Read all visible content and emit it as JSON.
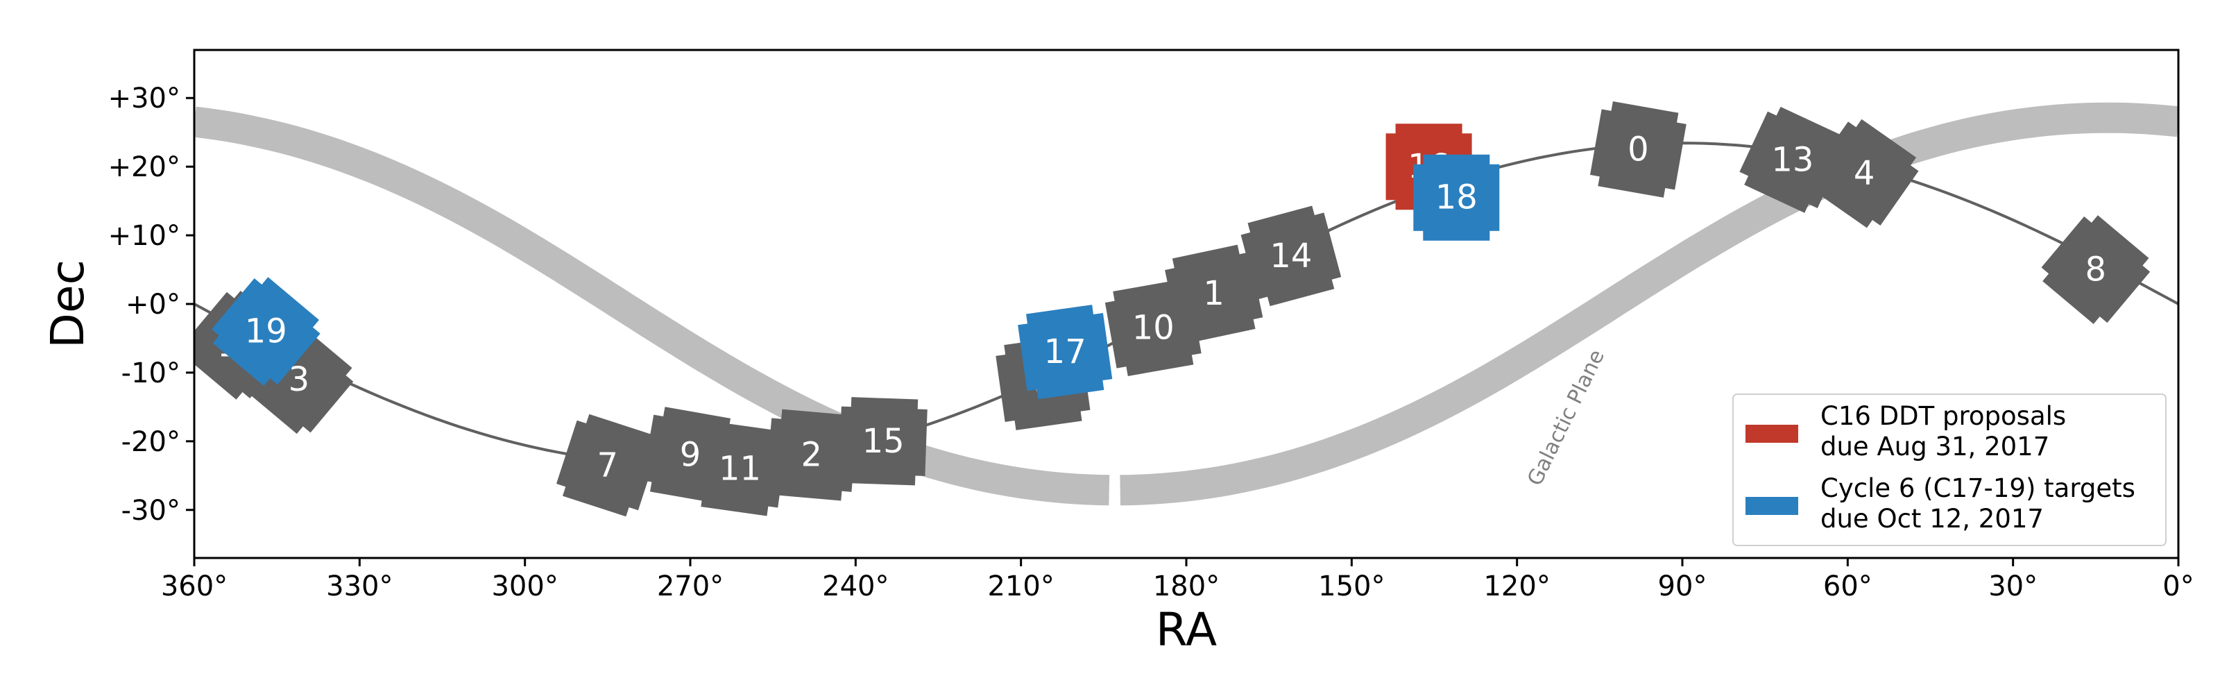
{
  "chart_data": {
    "type": "scatter",
    "title": "",
    "xlabel": "RA",
    "ylabel": "Dec",
    "xlim": [
      360,
      0
    ],
    "ylim": [
      -37,
      37
    ],
    "x_ticks": [
      {
        "value": 360,
        "label": "360°"
      },
      {
        "value": 330,
        "label": "330°"
      },
      {
        "value": 300,
        "label": "300°"
      },
      {
        "value": 270,
        "label": "270°"
      },
      {
        "value": 240,
        "label": "240°"
      },
      {
        "value": 210,
        "label": "210°"
      },
      {
        "value": 180,
        "label": "180°"
      },
      {
        "value": 150,
        "label": "150°"
      },
      {
        "value": 120,
        "label": "120°"
      },
      {
        "value": 90,
        "label": "90°"
      },
      {
        "value": 60,
        "label": "60°"
      },
      {
        "value": 30,
        "label": "30°"
      },
      {
        "value": 0,
        "label": "0°"
      }
    ],
    "y_ticks": [
      {
        "value": 30,
        "label": "+30°"
      },
      {
        "value": 20,
        "label": "+20°"
      },
      {
        "value": 10,
        "label": "+10°"
      },
      {
        "value": 0,
        "label": "+0°"
      },
      {
        "value": -10,
        "label": "-10°"
      },
      {
        "value": -20,
        "label": "-20°"
      },
      {
        "value": -30,
        "label": "-30°"
      }
    ],
    "grid": false,
    "colors": {
      "past": "#606060",
      "c16": "#c0392b",
      "cycle6": "#2a7fbf",
      "ecliptic": "#606060",
      "galactic": "#bdbdbd"
    },
    "legend": {
      "position": "lower-right",
      "entries": [
        {
          "group": "c16",
          "line1": "C16 DDT proposals",
          "line2": "due Aug 31, 2017"
        },
        {
          "group": "cycle6",
          "line1": "Cycle 6 (C17-19) targets",
          "line2": "due Oct 12, 2017"
        }
      ]
    },
    "annotation": {
      "text": "Galactic Plane"
    },
    "fields": [
      {
        "id": "0",
        "ra": 98,
        "dec": 22.5,
        "angle": 10,
        "group": "past"
      },
      {
        "id": "1",
        "ra": 175,
        "dec": 1.5,
        "angle": -12,
        "group": "past"
      },
      {
        "id": "2",
        "ra": 248,
        "dec": -22,
        "angle": 5,
        "group": "past"
      },
      {
        "id": "3",
        "ra": 341,
        "dec": -11,
        "angle": 40,
        "group": "past"
      },
      {
        "id": "4",
        "ra": 57,
        "dec": 19,
        "angle": 35,
        "group": "past"
      },
      {
        "id": "5",
        "ra": 133,
        "dec": 14,
        "angle": 0,
        "group": "past"
      },
      {
        "id": "6",
        "ra": 206,
        "dec": -11.5,
        "angle": -8,
        "group": "past"
      },
      {
        "id": "7",
        "ra": 285,
        "dec": -23.5,
        "angle": 18,
        "group": "past"
      },
      {
        "id": "8",
        "ra": 15,
        "dec": 5,
        "angle": 40,
        "group": "past"
      },
      {
        "id": "9",
        "ra": 270,
        "dec": -22,
        "angle": 10,
        "group": "past"
      },
      {
        "id": "10",
        "ra": 186,
        "dec": -3.5,
        "angle": -10,
        "group": "past"
      },
      {
        "id": "11",
        "ra": 261,
        "dec": -24,
        "angle": 8,
        "group": "past"
      },
      {
        "id": "12",
        "ra": 352,
        "dec": -6,
        "angle": 40,
        "group": "past"
      },
      {
        "id": "13",
        "ra": 70,
        "dec": 21,
        "angle": 25,
        "group": "past"
      },
      {
        "id": "14",
        "ra": 161,
        "dec": 7,
        "angle": -15,
        "group": "past"
      },
      {
        "id": "15",
        "ra": 235,
        "dec": -20,
        "angle": 2,
        "group": "past"
      },
      {
        "id": "16",
        "ra": 136,
        "dec": 20,
        "angle": 0,
        "group": "c16"
      },
      {
        "id": "17",
        "ra": 202,
        "dec": -7,
        "angle": -8,
        "group": "cycle6"
      },
      {
        "id": "18",
        "ra": 131,
        "dec": 15.5,
        "angle": 0,
        "group": "cycle6"
      },
      {
        "id": "19",
        "ra": 347,
        "dec": -4,
        "angle": 40,
        "group": "cycle6"
      }
    ]
  }
}
